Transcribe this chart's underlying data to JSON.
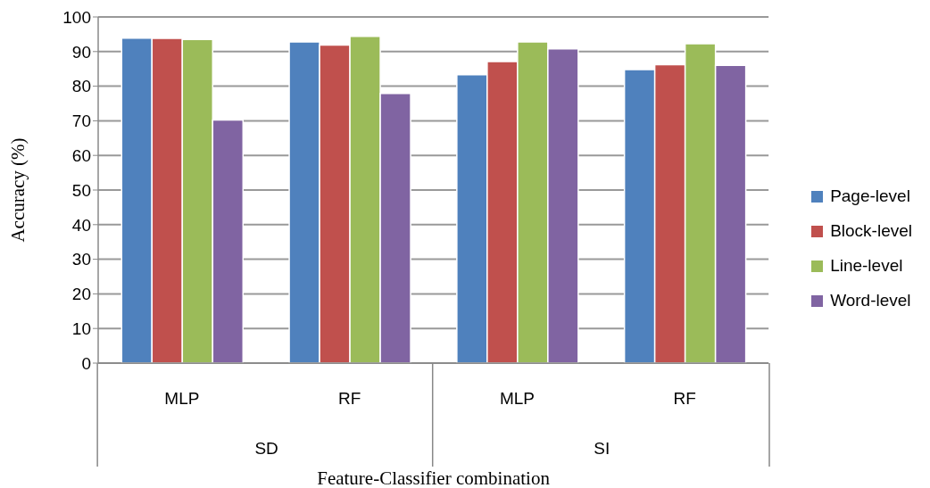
{
  "chart_data": {
    "type": "bar",
    "xlabel": "Feature-Classifier combination",
    "ylabel": "Accuracy (%)",
    "categories": [
      "MLP",
      "RF",
      "MLP",
      "RF"
    ],
    "annotations": [
      "SD",
      "SI"
    ],
    "series": [
      {
        "name": "Page-level",
        "color": "#4f81bd",
        "values": [
          93.9,
          92.8,
          83.3,
          84.8
        ]
      },
      {
        "name": "Block-level",
        "color": "#c0504d",
        "values": [
          93.8,
          91.9,
          87.1,
          86.2
        ]
      },
      {
        "name": "Line-level",
        "color": "#9bbb59",
        "values": [
          93.5,
          94.4,
          92.8,
          92.3
        ]
      },
      {
        "name": "Word-level",
        "color": "#8064a2",
        "values": [
          70.2,
          77.9,
          90.8,
          86.0
        ]
      }
    ],
    "ylim": [
      0,
      100
    ],
    "yticks": [
      0,
      10,
      20,
      30,
      40,
      50,
      60,
      70,
      80,
      90,
      100
    ],
    "grid": "y",
    "legend": "right"
  }
}
